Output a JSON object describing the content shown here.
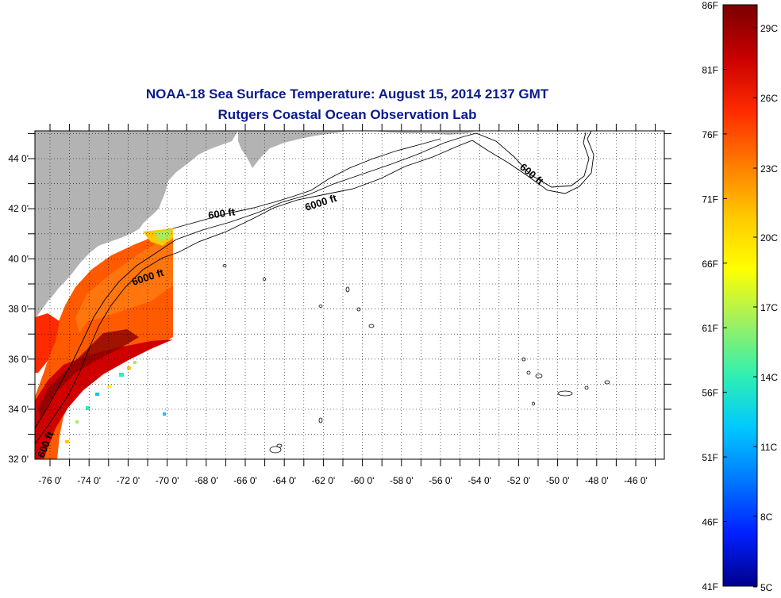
{
  "title": "NOAA-18 Sea Surface Temperature:  August 15, 2014 2137 GMT",
  "subtitle": "Rutgers Coastal Ocean Observation Lab",
  "map": {
    "lat_ticks": [
      "44 0'",
      "42 0'",
      "40 0'",
      "38 0'",
      "36 0'",
      "34 0'",
      "32 0'"
    ],
    "lon_ticks": [
      "-76 0'",
      "-74 0'",
      "-72 0'",
      "-70 0'",
      "-68 0'",
      "-66 0'",
      "-64 0'",
      "-62 0'",
      "-60 0'",
      "-58 0'",
      "-56 0'",
      "-54 0'",
      "-52 0'",
      "-50 0'",
      "-48 0'",
      "-46 0'"
    ],
    "contour_labels": [
      "600 ft",
      "6000 ft",
      "6000 ft",
      "600 ft",
      "600 ft"
    ],
    "colors": {
      "land": "#b3b3b3",
      "sea_no_data": "#ffffff",
      "contour": "#000000",
      "grid": "#000000"
    }
  },
  "colorbar": {
    "fahrenheit": [
      "86F",
      "81F",
      "76F",
      "71F",
      "66F",
      "61F",
      "56F",
      "51F",
      "46F",
      "41F"
    ],
    "celsius": [
      "29C",
      "26C",
      "23C",
      "20C",
      "17C",
      "14C",
      "11C",
      "8C",
      "5C"
    ],
    "colors": [
      "#7a0000",
      "#c80000",
      "#ff2a00",
      "#ff7a00",
      "#ffc800",
      "#ffff00",
      "#9ff060",
      "#30f0b0",
      "#00c8ff",
      "#0078ff",
      "#0020ff",
      "#00008c"
    ]
  }
}
